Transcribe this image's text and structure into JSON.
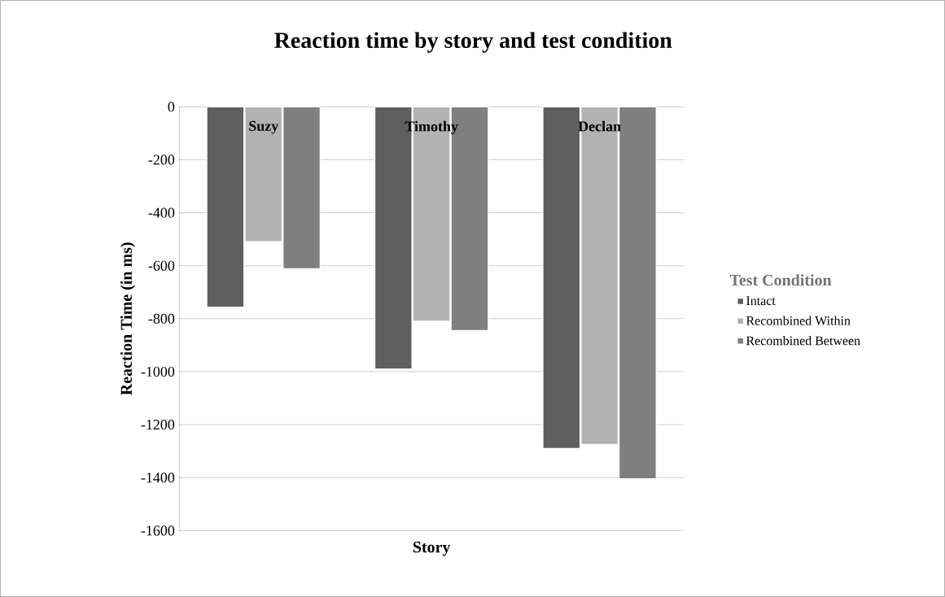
{
  "chart_data": {
    "type": "bar",
    "title": "Reaction time by story and test condition",
    "xlabel": "Story",
    "ylabel": "Reaction Time (in ms)",
    "legend_title": "Test Condition",
    "categories": [
      "Suzy",
      "Timothy",
      "Declan"
    ],
    "series": [
      {
        "name": "Intact",
        "color": "#5f5f5f",
        "values": [
          -757,
          -990,
          -1290
        ]
      },
      {
        "name": "Recombined Within",
        "color": "#b2b2b2",
        "values": [
          -510,
          -810,
          -1275
        ]
      },
      {
        "name": "Recombined Between",
        "color": "#7f7f7f",
        "values": [
          -612,
          -845,
          -1405
        ]
      }
    ],
    "ylim": [
      -1600,
      0
    ],
    "yticks": [
      -1600,
      -1400,
      -1200,
      -1000,
      -800,
      -600,
      -400,
      -200,
      0
    ],
    "grid": "y",
    "legend": "right"
  }
}
